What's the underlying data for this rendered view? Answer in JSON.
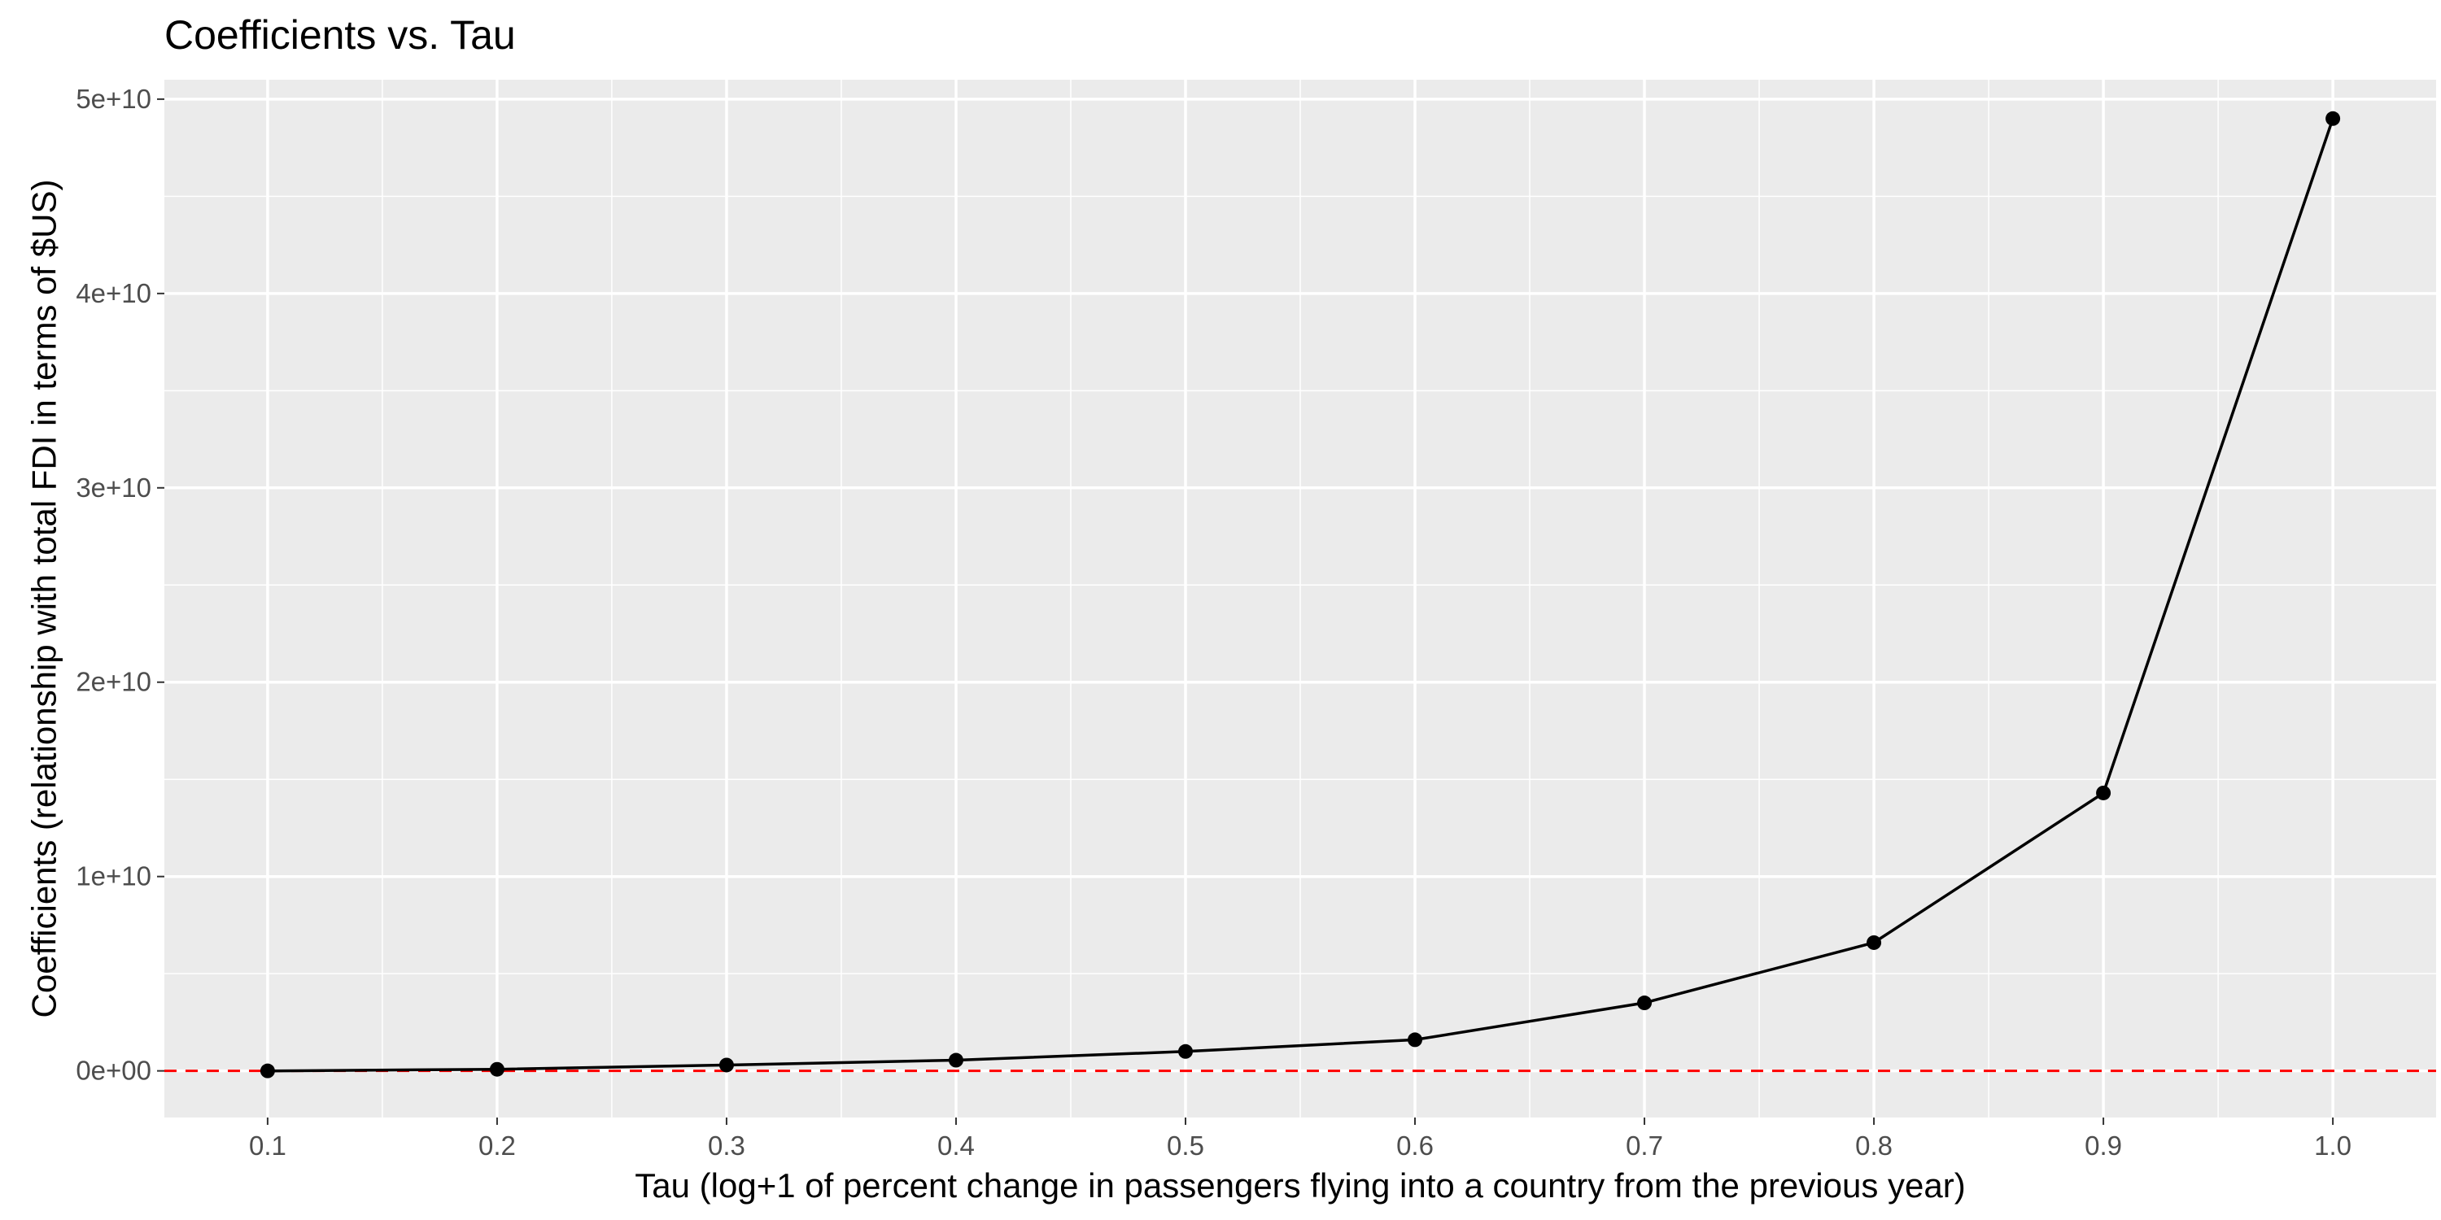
{
  "chart_data": {
    "type": "line",
    "title": "Coefficients vs. Tau",
    "xlabel": "Tau (log+1 of percent change in passengers flying into a country from the previous year)",
    "ylabel": "Coefficients (relationship with total FDI in terms of $US)",
    "x": [
      0.1,
      0.2,
      0.3,
      0.4,
      0.5,
      0.6,
      0.7,
      0.8,
      0.9,
      1.0
    ],
    "series": [
      {
        "values": [
          0,
          80000000,
          300000000,
          550000000,
          1000000000,
          1600000000,
          3500000000,
          6600000000,
          14300000000,
          49000000000
        ]
      }
    ],
    "xlim": [
      0.055,
      1.045
    ],
    "ylim": [
      -2400000000,
      51000000000
    ],
    "x_ticks": [
      {
        "value": 0.1,
        "label": "0.1"
      },
      {
        "value": 0.2,
        "label": "0.2"
      },
      {
        "value": 0.3,
        "label": "0.3"
      },
      {
        "value": 0.4,
        "label": "0.4"
      },
      {
        "value": 0.5,
        "label": "0.5"
      },
      {
        "value": 0.6,
        "label": "0.6"
      },
      {
        "value": 0.7,
        "label": "0.7"
      },
      {
        "value": 0.8,
        "label": "0.8"
      },
      {
        "value": 0.9,
        "label": "0.9"
      },
      {
        "value": 1.0,
        "label": "1.0"
      }
    ],
    "y_ticks": [
      {
        "value": 0,
        "label": "0e+00"
      },
      {
        "value": 10000000000,
        "label": "1e+10"
      },
      {
        "value": 20000000000,
        "label": "2e+10"
      },
      {
        "value": 30000000000,
        "label": "3e+10"
      },
      {
        "value": 40000000000,
        "label": "4e+10"
      },
      {
        "value": 50000000000,
        "label": "5e+10"
      }
    ],
    "reference_line": {
      "y": 0,
      "color": "#ff0000",
      "style": "dashed"
    },
    "line_color": "#000000",
    "panel_background": "#ebebeb",
    "grid": true,
    "legend": "none"
  }
}
